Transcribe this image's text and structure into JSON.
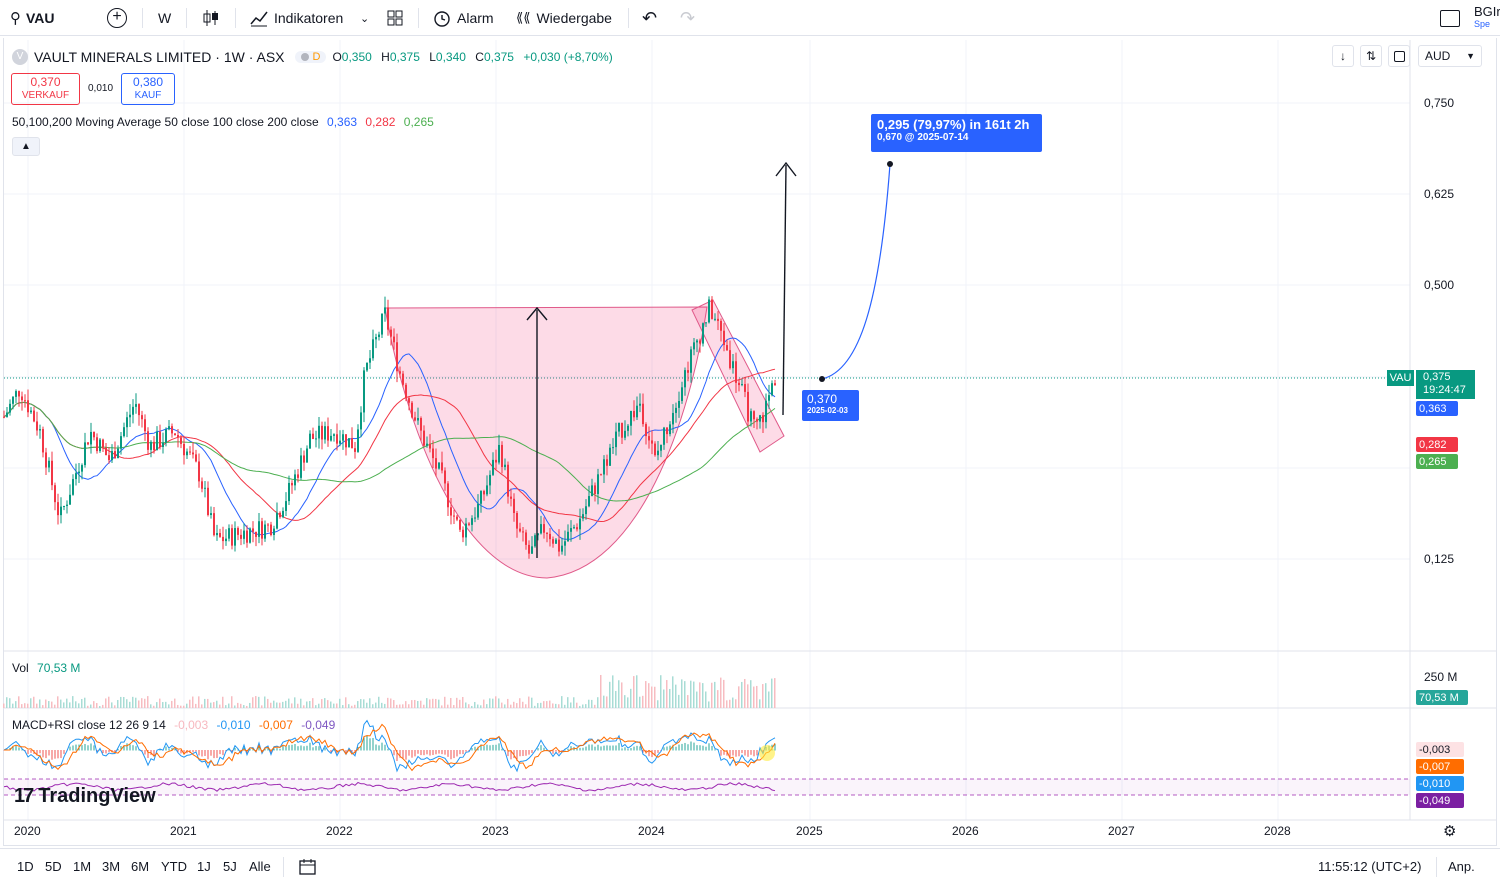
{
  "toolbar": {
    "symbol": "VAU",
    "interval": "W",
    "indicators_label": "Indikatoren",
    "alert_label": "Alarm",
    "replay_label": "Wiedergabe",
    "user_label": "BGIr",
    "user_sub": "Spe"
  },
  "legend": {
    "title": "VAULT MINERALS LIMITED · 1W · ASX",
    "flag": "D",
    "open_label": "O",
    "open": "0,350",
    "high_label": "H",
    "high": "0,375",
    "low_label": "L",
    "low": "0,340",
    "close_label": "C",
    "close": "0,375",
    "change": "+0,030 (+8,70%)",
    "sell_price": "0,370",
    "sell_label": "VERKAUF",
    "spread": "0,010",
    "buy_price": "0,380",
    "buy_label": "KAUF",
    "ma_label": "50,100,200 Moving Average 50 close 100 close 200 close",
    "ma50": "0,363",
    "ma100": "0,282",
    "ma200": "0,265"
  },
  "currency": "AUD",
  "price_axis": [
    "0,750",
    "0,625",
    "0,500",
    "0,125"
  ],
  "price_tags": {
    "symbol": "VAU",
    "last": "0,375",
    "countdown": "19:24:47",
    "ma50": "0,363",
    "ma100": "0,282",
    "ma200": "0,265"
  },
  "annotations": {
    "target": "0,295 (79,97%) in 161t 2h",
    "target_sub": "0,670 @ 2025-07-14",
    "start": "0,370",
    "start_date": "2025-02-03"
  },
  "volume": {
    "label": "Vol",
    "value": "70,53 M",
    "axis": "250 M",
    "tag": "70,53 M"
  },
  "macd": {
    "label": "MACD+RSI close 12 26 9 14",
    "v1": "-0,003",
    "v2": "-0,010",
    "v3": "-0,007",
    "v4": "-0,049",
    "tags": [
      "-0,003",
      "-0,007",
      "-0,010",
      "-0,049"
    ]
  },
  "watermark": "TradingView",
  "time_axis": [
    "2020",
    "2021",
    "2022",
    "2023",
    "2024",
    "2025",
    "2026",
    "2027",
    "2028"
  ],
  "ranges": [
    "1D",
    "5D",
    "1M",
    "3M",
    "6M",
    "YTD",
    "1J",
    "5J",
    "Alle"
  ],
  "clock": "11:55:12 (UTC+2)",
  "adjust_label": "Anp."
}
